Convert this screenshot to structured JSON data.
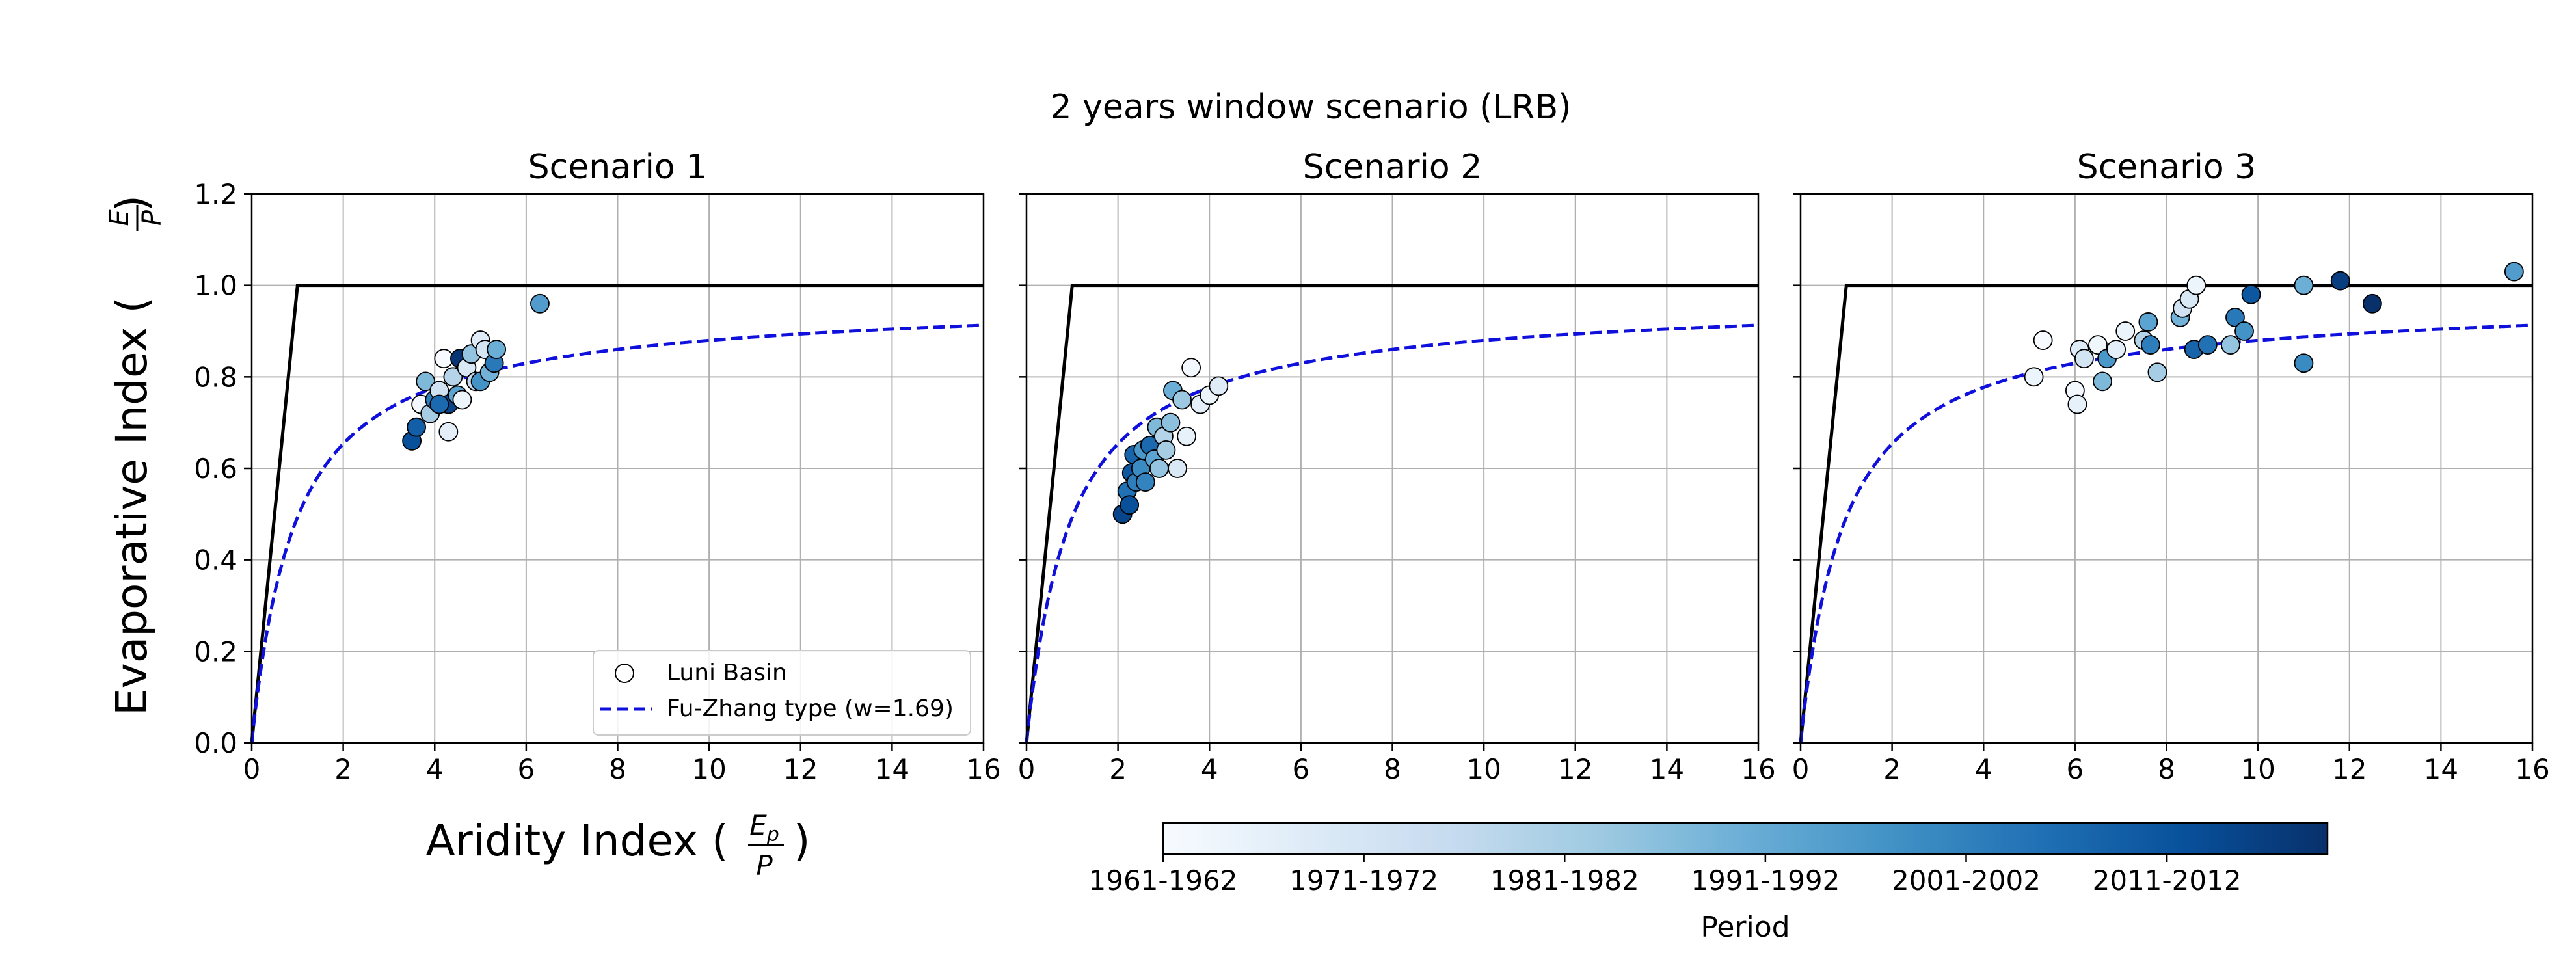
{
  "figure": {
    "suptitle": "2 years window scenario (LRB)",
    "ylabel_text": "Evaporative Index (",
    "ylabel_num": "E",
    "ylabel_den": "P",
    "ylabel_close": ")",
    "xlabel_text": "Aridity Index (",
    "xlabel_num": "E",
    "xlabel_num_sub": "p",
    "xlabel_den": "P",
    "xlabel_close": ")",
    "legend": {
      "location": "lower-right of Scenario 1",
      "entries": [
        "Luni Basin",
        "Fu-Zhang type (w=1.69)"
      ]
    },
    "colorbar": {
      "label": "Period",
      "colormap": "Blues",
      "ticks": [
        "1961-1962",
        "1971-1972",
        "1981-1982",
        "1991-1992",
        "2001-2002",
        "2011-2012"
      ]
    },
    "colors": {
      "fu_zhang_line": "#1010dd",
      "limit_line": "#000000",
      "grid": "#b0b0b0",
      "marker_edge": "#000000"
    }
  },
  "chart_data": [
    {
      "type": "scatter",
      "title": "Scenario 1",
      "xlim": [
        0,
        16
      ],
      "ylim": [
        0,
        1.2
      ],
      "xticks": [
        "0",
        "2",
        "4",
        "6",
        "8",
        "10",
        "12",
        "14",
        "16"
      ],
      "yticks": [
        "0.0",
        "0.2",
        "0.4",
        "0.6",
        "0.8",
        "1.0",
        "1.2"
      ],
      "grid": true,
      "limits": {
        "energy": "y = x for x ≤ 1",
        "water": "y = 1"
      },
      "fu_zhang_w": 1.69,
      "points": [
        {
          "x": 3.5,
          "y": 0.66,
          "c": 0.88
        },
        {
          "x": 3.6,
          "y": 0.69,
          "c": 0.82
        },
        {
          "x": 3.7,
          "y": 0.74,
          "c": 0.02
        },
        {
          "x": 3.8,
          "y": 0.79,
          "c": 0.45
        },
        {
          "x": 3.9,
          "y": 0.72,
          "c": 0.35
        },
        {
          "x": 4.0,
          "y": 0.75,
          "c": 0.7
        },
        {
          "x": 4.1,
          "y": 0.77,
          "c": 0.2
        },
        {
          "x": 4.2,
          "y": 0.84,
          "c": 0.0
        },
        {
          "x": 4.3,
          "y": 0.68,
          "c": 0.1
        },
        {
          "x": 4.3,
          "y": 0.74,
          "c": 0.92
        },
        {
          "x": 4.4,
          "y": 0.8,
          "c": 0.3
        },
        {
          "x": 4.5,
          "y": 0.76,
          "c": 0.55
        },
        {
          "x": 4.55,
          "y": 0.84,
          "c": 0.98
        },
        {
          "x": 4.6,
          "y": 0.75,
          "c": 0.05
        },
        {
          "x": 4.7,
          "y": 0.82,
          "c": 0.15
        },
        {
          "x": 4.8,
          "y": 0.85,
          "c": 0.4
        },
        {
          "x": 4.9,
          "y": 0.79,
          "c": 0.25
        },
        {
          "x": 5.0,
          "y": 0.88,
          "c": 0.12
        },
        {
          "x": 5.0,
          "y": 0.79,
          "c": 0.62
        },
        {
          "x": 5.1,
          "y": 0.86,
          "c": 0.18
        },
        {
          "x": 5.2,
          "y": 0.81,
          "c": 0.48
        },
        {
          "x": 5.3,
          "y": 0.83,
          "c": 0.72
        },
        {
          "x": 5.35,
          "y": 0.86,
          "c": 0.5
        },
        {
          "x": 4.1,
          "y": 0.74,
          "c": 0.78
        },
        {
          "x": 6.3,
          "y": 0.96,
          "c": 0.58
        }
      ]
    },
    {
      "type": "scatter",
      "title": "Scenario 2",
      "xlim": [
        0,
        16
      ],
      "ylim": [
        0,
        1.2
      ],
      "xticks": [
        "0",
        "2",
        "4",
        "6",
        "8",
        "10",
        "12",
        "14",
        "16"
      ],
      "grid": true,
      "limits": {
        "energy": "y = x for x ≤ 1",
        "water": "y = 1"
      },
      "fu_zhang_w": 1.69,
      "points": [
        {
          "x": 2.1,
          "y": 0.5,
          "c": 0.92
        },
        {
          "x": 2.2,
          "y": 0.55,
          "c": 0.75
        },
        {
          "x": 2.25,
          "y": 0.52,
          "c": 0.88
        },
        {
          "x": 2.3,
          "y": 0.59,
          "c": 0.85
        },
        {
          "x": 2.35,
          "y": 0.63,
          "c": 0.8
        },
        {
          "x": 2.4,
          "y": 0.57,
          "c": 0.7
        },
        {
          "x": 2.5,
          "y": 0.6,
          "c": 0.65
        },
        {
          "x": 2.55,
          "y": 0.64,
          "c": 0.6
        },
        {
          "x": 2.6,
          "y": 0.57,
          "c": 0.68
        },
        {
          "x": 2.7,
          "y": 0.65,
          "c": 0.78
        },
        {
          "x": 2.8,
          "y": 0.62,
          "c": 0.55
        },
        {
          "x": 2.85,
          "y": 0.69,
          "c": 0.45
        },
        {
          "x": 2.9,
          "y": 0.6,
          "c": 0.4
        },
        {
          "x": 3.0,
          "y": 0.67,
          "c": 0.3
        },
        {
          "x": 3.05,
          "y": 0.64,
          "c": 0.35
        },
        {
          "x": 3.15,
          "y": 0.7,
          "c": 0.42
        },
        {
          "x": 3.2,
          "y": 0.77,
          "c": 0.5
        },
        {
          "x": 3.3,
          "y": 0.6,
          "c": 0.15
        },
        {
          "x": 3.4,
          "y": 0.75,
          "c": 0.38
        },
        {
          "x": 3.5,
          "y": 0.67,
          "c": 0.08
        },
        {
          "x": 3.6,
          "y": 0.82,
          "c": 0.02
        },
        {
          "x": 3.8,
          "y": 0.74,
          "c": 0.1
        },
        {
          "x": 4.0,
          "y": 0.76,
          "c": 0.05
        },
        {
          "x": 4.2,
          "y": 0.78,
          "c": 0.12
        }
      ]
    },
    {
      "type": "scatter",
      "title": "Scenario 3",
      "xlim": [
        0,
        16
      ],
      "ylim": [
        0,
        1.2
      ],
      "xticks": [
        "0",
        "2",
        "4",
        "6",
        "8",
        "10",
        "12",
        "14",
        "16"
      ],
      "grid": true,
      "limits": {
        "energy": "y = x for x ≤ 1",
        "water": "y = 1"
      },
      "fu_zhang_w": 1.69,
      "points": [
        {
          "x": 5.1,
          "y": 0.8,
          "c": 0.05
        },
        {
          "x": 5.3,
          "y": 0.88,
          "c": 0.0
        },
        {
          "x": 6.0,
          "y": 0.77,
          "c": 0.02
        },
        {
          "x": 6.05,
          "y": 0.74,
          "c": 0.08
        },
        {
          "x": 6.1,
          "y": 0.86,
          "c": 0.12
        },
        {
          "x": 6.2,
          "y": 0.84,
          "c": 0.18
        },
        {
          "x": 6.5,
          "y": 0.87,
          "c": 0.04
        },
        {
          "x": 6.6,
          "y": 0.79,
          "c": 0.45
        },
        {
          "x": 6.7,
          "y": 0.84,
          "c": 0.6
        },
        {
          "x": 6.9,
          "y": 0.86,
          "c": 0.1
        },
        {
          "x": 7.1,
          "y": 0.9,
          "c": 0.06
        },
        {
          "x": 7.5,
          "y": 0.88,
          "c": 0.3
        },
        {
          "x": 7.6,
          "y": 0.92,
          "c": 0.55
        },
        {
          "x": 7.65,
          "y": 0.87,
          "c": 0.7
        },
        {
          "x": 7.8,
          "y": 0.81,
          "c": 0.35
        },
        {
          "x": 8.3,
          "y": 0.93,
          "c": 0.48
        },
        {
          "x": 8.35,
          "y": 0.95,
          "c": 0.2
        },
        {
          "x": 8.5,
          "y": 0.97,
          "c": 0.15
        },
        {
          "x": 8.6,
          "y": 0.86,
          "c": 0.8
        },
        {
          "x": 8.65,
          "y": 1.0,
          "c": 0.05
        },
        {
          "x": 8.9,
          "y": 0.87,
          "c": 0.75
        },
        {
          "x": 9.4,
          "y": 0.87,
          "c": 0.4
        },
        {
          "x": 9.5,
          "y": 0.93,
          "c": 0.72
        },
        {
          "x": 9.7,
          "y": 0.9,
          "c": 0.62
        },
        {
          "x": 9.85,
          "y": 0.98,
          "c": 0.85
        },
        {
          "x": 11.0,
          "y": 1.0,
          "c": 0.5
        },
        {
          "x": 11.0,
          "y": 0.83,
          "c": 0.65
        },
        {
          "x": 11.8,
          "y": 1.01,
          "c": 0.95
        },
        {
          "x": 12.5,
          "y": 0.96,
          "c": 1.0
        },
        {
          "x": 15.6,
          "y": 1.03,
          "c": 0.58
        }
      ]
    }
  ]
}
